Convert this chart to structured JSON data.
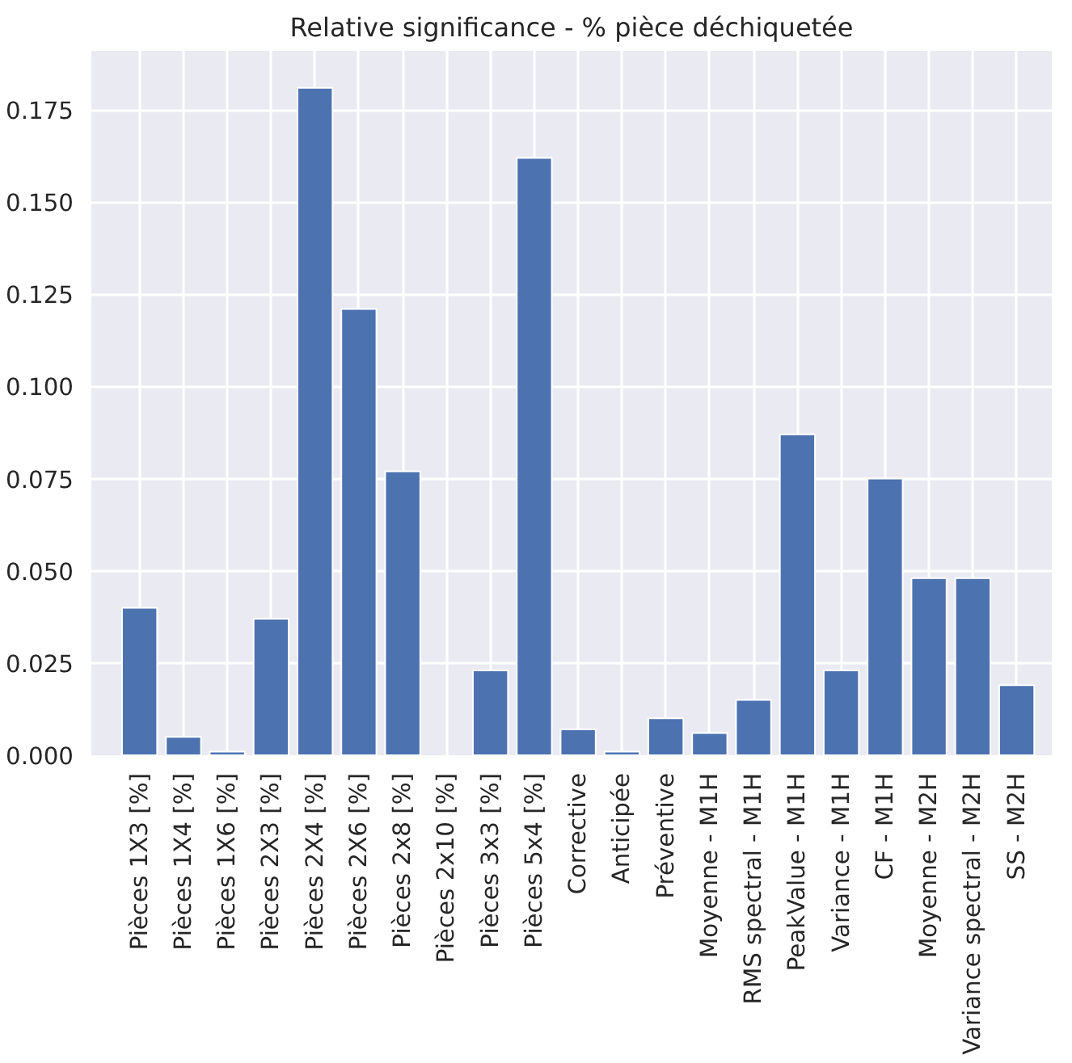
{
  "chart_data": {
    "type": "bar",
    "title": "Relative significance - % pièce déchiquetée",
    "categories": [
      "Pièces 1X3 [%]",
      "Pièces 1X4 [%]",
      "Pièces 1X6 [%]",
      "Pièces 2X3 [%]",
      "Pièces 2X4 [%]",
      "Pièces 2X6 [%]",
      "Pièces 2x8 [%]",
      "Pièces 2x10 [%]",
      "Pièces 3x3 [%]",
      "Pièces 5x4 [%]",
      "Corrective",
      "Anticipée",
      "Préventive",
      "Moyenne - M1H",
      "RMS spectral - M1H",
      "PeakValue - M1H",
      "Variance - M1H",
      "CF - M1H",
      "Moyenne - M2H",
      "Variance spectral - M2H",
      "SS - M2H"
    ],
    "values": [
      0.04,
      0.005,
      0.001,
      0.037,
      0.181,
      0.121,
      0.077,
      null,
      0.023,
      0.162,
      0.007,
      0.001,
      0.01,
      0.006,
      0.015,
      0.087,
      0.023,
      0.075,
      0.048,
      0.048,
      0.019
    ],
    "color": "#4c72b0",
    "ylim": [
      0,
      0.191
    ],
    "yticks": [
      {
        "value": 0,
        "label": "0.000"
      },
      {
        "value": 0.025,
        "label": "0.025"
      },
      {
        "value": 0.05,
        "label": "0.050"
      },
      {
        "value": 0.075,
        "label": "0.075"
      },
      {
        "value": 0.1,
        "label": "0.100"
      },
      {
        "value": 0.125,
        "label": "0.125"
      },
      {
        "value": 0.15,
        "label": "0.150"
      },
      {
        "value": 0.175,
        "label": "0.175"
      }
    ],
    "grid": true
  }
}
